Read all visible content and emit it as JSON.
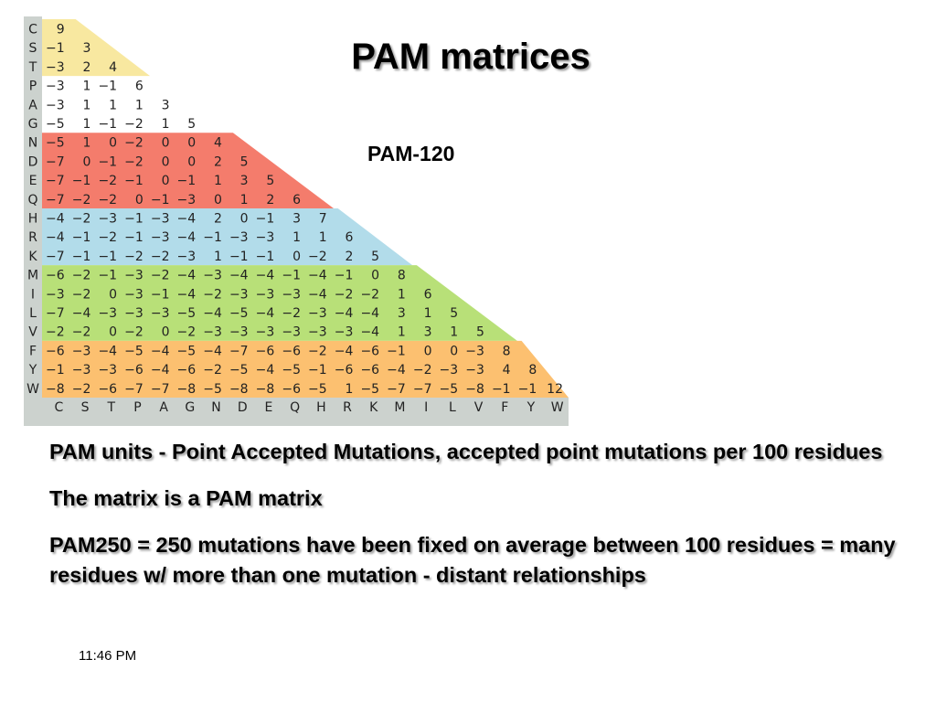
{
  "slide": {
    "title": "PAM matrices",
    "subtitle": "PAM-120",
    "paragraphs": [
      "PAM units - Point Accepted Mutations, accepted point mutations per 100 residues",
      "The matrix is a PAM matrix",
      "PAM250 = 250 mutations have been fixed on average between 100 residues = many residues w/ more than one mutation - distant relationships"
    ],
    "timestamp": "11:46 PM"
  },
  "matrix": {
    "name": "PAM-120",
    "amino_acids": [
      "C",
      "S",
      "T",
      "P",
      "A",
      "G",
      "N",
      "D",
      "E",
      "Q",
      "H",
      "R",
      "K",
      "M",
      "I",
      "L",
      "V",
      "F",
      "Y",
      "W"
    ],
    "rows": [
      [
        9
      ],
      [
        -1,
        3
      ],
      [
        -3,
        2,
        4
      ],
      [
        -3,
        1,
        -1,
        6
      ],
      [
        -3,
        1,
        1,
        1,
        3
      ],
      [
        -5,
        1,
        -1,
        -2,
        1,
        5
      ],
      [
        -5,
        1,
        0,
        -2,
        0,
        0,
        4
      ],
      [
        -7,
        0,
        -1,
        -2,
        0,
        0,
        2,
        5
      ],
      [
        -7,
        -1,
        -2,
        -1,
        0,
        -1,
        1,
        3,
        5
      ],
      [
        -7,
        -2,
        -2,
        0,
        -1,
        -3,
        0,
        1,
        2,
        6
      ],
      [
        -4,
        -2,
        -3,
        -1,
        -3,
        -4,
        2,
        0,
        -1,
        3,
        7
      ],
      [
        -4,
        -1,
        -2,
        -1,
        -3,
        -4,
        -1,
        -3,
        -3,
        1,
        1,
        6
      ],
      [
        -7,
        -1,
        -1,
        -2,
        -2,
        -3,
        1,
        -1,
        -1,
        0,
        -2,
        2,
        5
      ],
      [
        -6,
        -2,
        -1,
        -3,
        -2,
        -4,
        -3,
        -4,
        -4,
        -1,
        -4,
        -1,
        0,
        8
      ],
      [
        -3,
        -2,
        0,
        -3,
        -1,
        -4,
        -2,
        -3,
        -3,
        -3,
        -4,
        -2,
        -2,
        1,
        6
      ],
      [
        -7,
        -4,
        -3,
        -3,
        -3,
        -5,
        -4,
        -5,
        -4,
        -2,
        -3,
        -4,
        -4,
        3,
        1,
        5
      ],
      [
        -2,
        -2,
        0,
        -2,
        0,
        -2,
        -3,
        -3,
        -3,
        -3,
        -3,
        -3,
        -4,
        1,
        3,
        1,
        5
      ],
      [
        -6,
        -3,
        -4,
        -5,
        -4,
        -5,
        -4,
        -7,
        -6,
        -6,
        -2,
        -4,
        -6,
        -1,
        0,
        0,
        -3,
        8
      ],
      [
        -1,
        -3,
        -3,
        -6,
        -4,
        -6,
        -2,
        -5,
        -4,
        -5,
        -1,
        -6,
        -6,
        -4,
        -2,
        -3,
        -3,
        4,
        8
      ],
      [
        -8,
        -2,
        -6,
        -7,
        -7,
        -8,
        -5,
        -8,
        -8,
        -6,
        -5,
        1,
        -5,
        -7,
        -7,
        -5,
        -8,
        -1,
        -1,
        12
      ]
    ],
    "groups": [
      {
        "label": "C-S-T",
        "start": 0,
        "end": 2,
        "color": "#f8e8a0"
      },
      {
        "label": "P-A-G",
        "start": 3,
        "end": 5,
        "color": "#ffffff"
      },
      {
        "label": "N-D-E-Q",
        "start": 6,
        "end": 9,
        "color": "#f47c6c"
      },
      {
        "label": "H-R-K",
        "start": 10,
        "end": 12,
        "color": "#b2dcea"
      },
      {
        "label": "M-I-L-V",
        "start": 13,
        "end": 16,
        "color": "#b8e078"
      },
      {
        "label": "F-Y-W",
        "start": 17,
        "end": 19,
        "color": "#fcc070"
      }
    ],
    "label_bg": "#ccd2ce"
  }
}
